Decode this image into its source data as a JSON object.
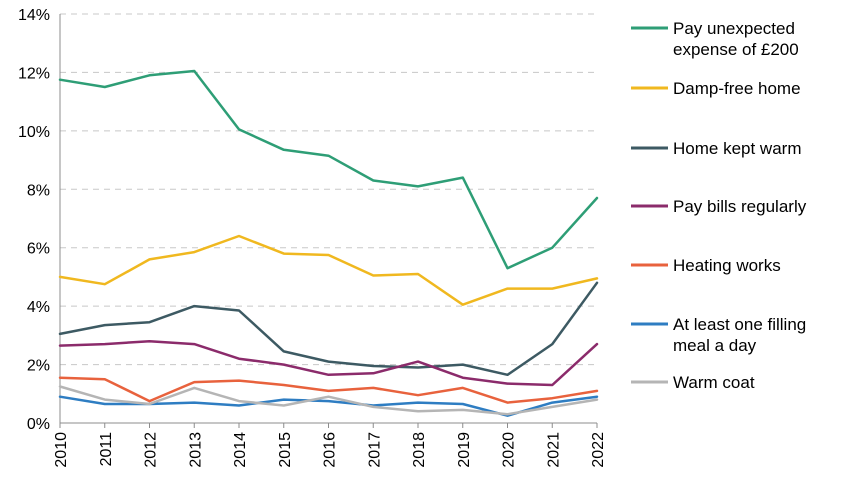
{
  "chart_data": {
    "type": "line",
    "title": "",
    "xlabel": "",
    "ylabel": "",
    "x": [
      "2010",
      "2011",
      "2012",
      "2013",
      "2014",
      "2015",
      "2016",
      "2017",
      "2018",
      "2019",
      "2020",
      "2021",
      "2022"
    ],
    "ylim": [
      0,
      14
    ],
    "yticks": [
      0,
      2,
      4,
      6,
      8,
      10,
      12,
      14
    ],
    "ytick_labels": [
      "0%",
      "2%",
      "4%",
      "6%",
      "8%",
      "10%",
      "12%",
      "14%"
    ],
    "grid": "horizontal-dashed",
    "legend_position": "right",
    "series": [
      {
        "name": "Pay unexpected expense of £200",
        "legend_lines": [
          "Pay unexpected",
          "expense of £200"
        ],
        "color": "#2e9e76",
        "values": [
          11.75,
          11.5,
          11.9,
          12.05,
          10.05,
          9.35,
          9.15,
          8.3,
          8.1,
          8.4,
          5.3,
          6.0,
          7.7
        ]
      },
      {
        "name": "Damp-free home",
        "legend_lines": [
          "Damp-free home"
        ],
        "color": "#f0b81f",
        "values": [
          5.0,
          4.75,
          5.6,
          5.85,
          6.4,
          5.8,
          5.75,
          5.05,
          5.1,
          4.05,
          4.6,
          4.6,
          4.95
        ]
      },
      {
        "name": "Home kept warm",
        "legend_lines": [
          "Home kept warm"
        ],
        "color": "#3d5a63",
        "values": [
          3.05,
          3.35,
          3.45,
          4.0,
          3.85,
          2.45,
          2.1,
          1.95,
          1.9,
          2.0,
          1.65,
          2.7,
          4.8
        ]
      },
      {
        "name": "Pay bills regularly",
        "legend_lines": [
          "Pay bills regularly"
        ],
        "color": "#8b2b6b",
        "values": [
          2.65,
          2.7,
          2.8,
          2.7,
          2.2,
          2.0,
          1.65,
          1.7,
          2.1,
          1.55,
          1.35,
          1.3,
          2.7
        ]
      },
      {
        "name": "Heating works",
        "legend_lines": [
          "Heating works"
        ],
        "color": "#e8623d",
        "values": [
          1.55,
          1.5,
          0.75,
          1.4,
          1.45,
          1.3,
          1.1,
          1.2,
          0.95,
          1.2,
          0.7,
          0.85,
          1.1
        ]
      },
      {
        "name": "At least one filling meal a day",
        "legend_lines": [
          "At least one filling",
          "meal a day"
        ],
        "color": "#2e7dc2",
        "values": [
          0.9,
          0.65,
          0.65,
          0.7,
          0.6,
          0.8,
          0.75,
          0.6,
          0.7,
          0.65,
          0.25,
          0.7,
          0.9
        ]
      },
      {
        "name": "Warm coat",
        "legend_lines": [
          "Warm coat"
        ],
        "color": "#b5b5b5",
        "values": [
          1.25,
          0.8,
          0.65,
          1.2,
          0.75,
          0.6,
          0.9,
          0.55,
          0.4,
          0.45,
          0.3,
          0.55,
          0.8
        ]
      }
    ]
  }
}
